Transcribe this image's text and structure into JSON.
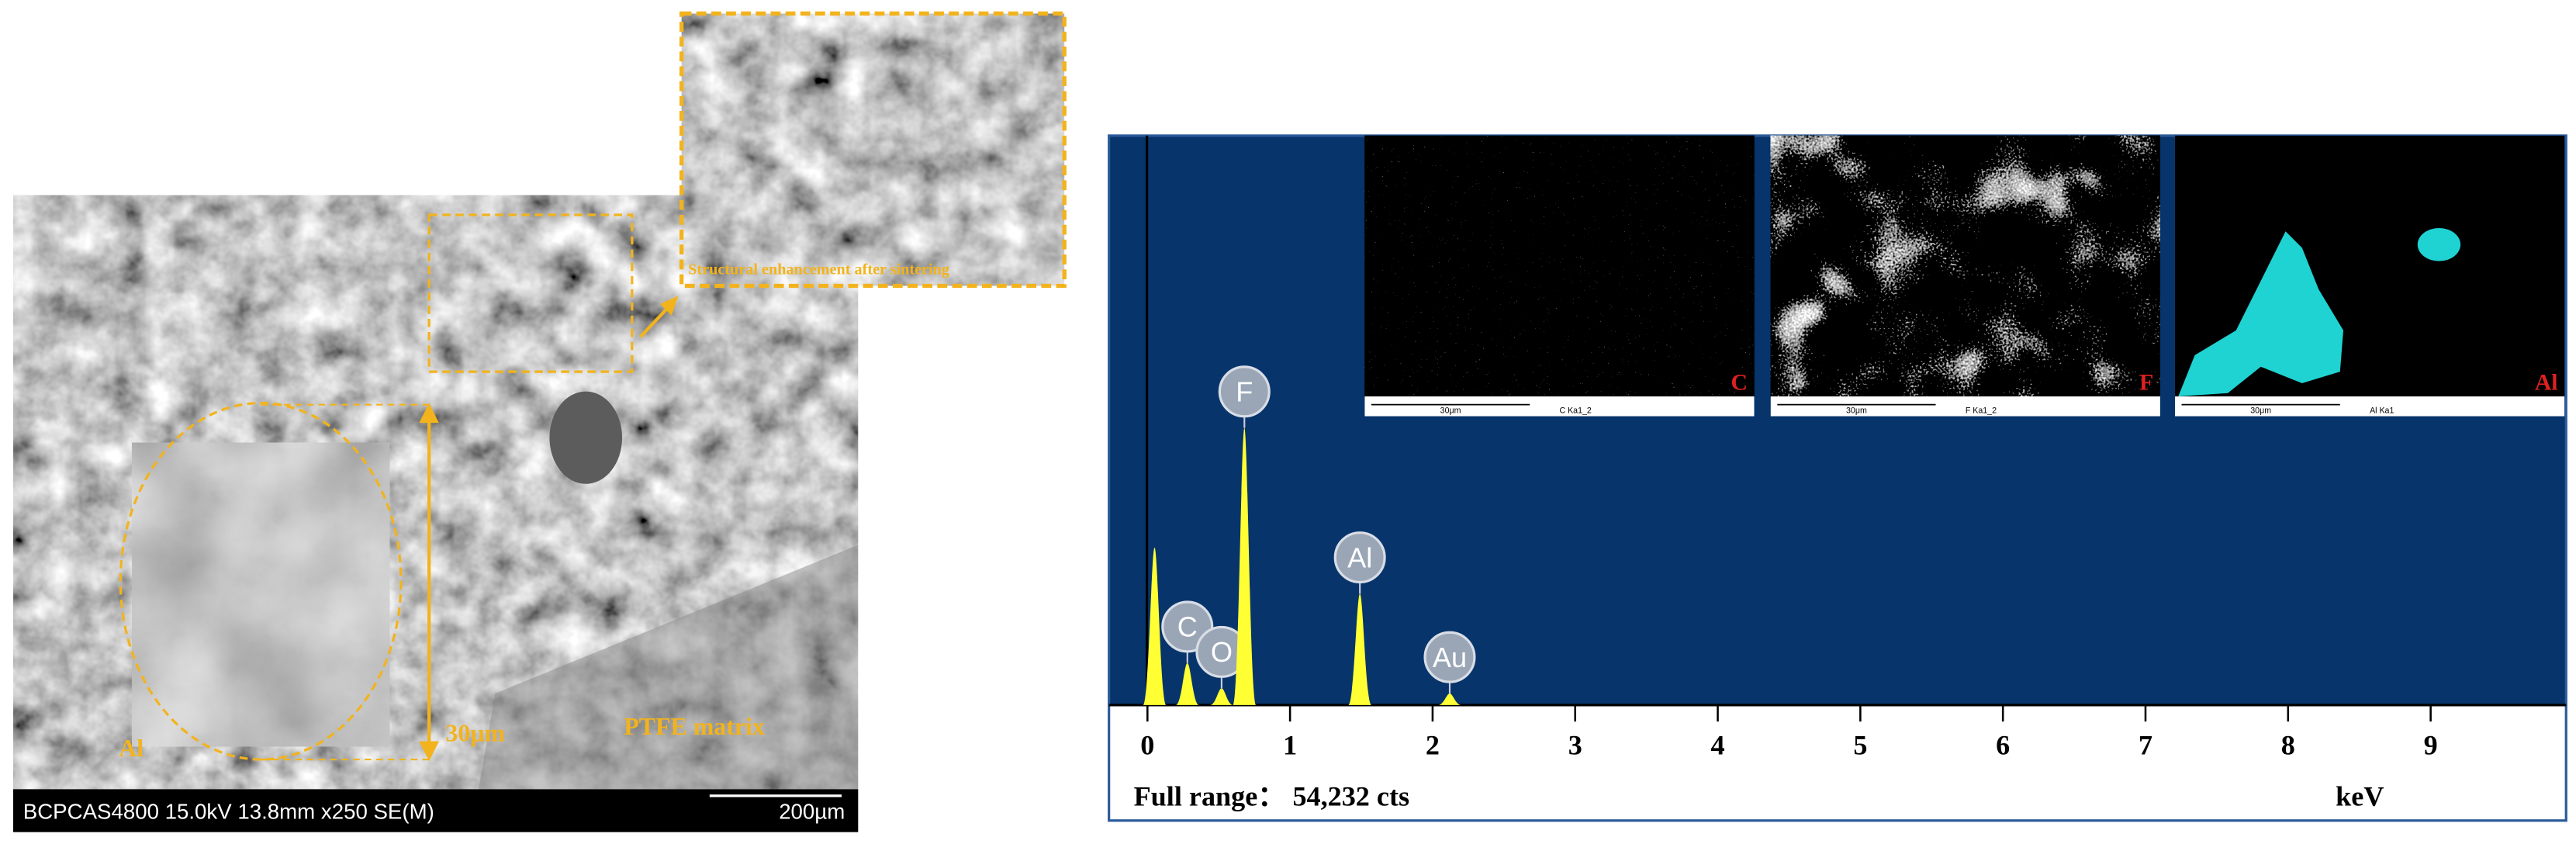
{
  "sem": {
    "info_bar": "BCPCAS4800 15.0kV 13.8mm x250 SE(M)",
    "scale_bar": "200µm",
    "inset_caption": "Structural enhancement after sintering",
    "size_label": "30μm",
    "particle_label": "Al",
    "matrix_label": "PTFE matrix"
  },
  "maps": [
    {
      "element": "C",
      "scale": "30μm",
      "channel": "C Ka1_2"
    },
    {
      "element": "F",
      "scale": "30μm",
      "channel": "F Ka1_2"
    },
    {
      "element": "Al",
      "scale": "30μm",
      "channel": "Al Ka1"
    }
  ],
  "chart_data": {
    "type": "spectrum",
    "x_label": "keV",
    "full_range": "Full range：  54,232 cts",
    "xlim": [
      -0.27,
      9.95
    ],
    "xticks": [
      0,
      1,
      2,
      3,
      4,
      5,
      6,
      7,
      8,
      9
    ],
    "ylim": [
      0,
      54232
    ],
    "color": "#ffff33",
    "background": "#07346b",
    "peaks": [
      {
        "label": null,
        "kev": 0.05,
        "counts": 15000
      },
      {
        "label": "C",
        "kev": 0.28,
        "counts": 4000
      },
      {
        "label": "O",
        "kev": 0.52,
        "counts": 1600
      },
      {
        "label": "F",
        "kev": 0.68,
        "counts": 26400
      },
      {
        "label": "Al",
        "kev": 1.49,
        "counts": 10600
      },
      {
        "label": "Au",
        "kev": 2.12,
        "counts": 1100
      }
    ]
  }
}
